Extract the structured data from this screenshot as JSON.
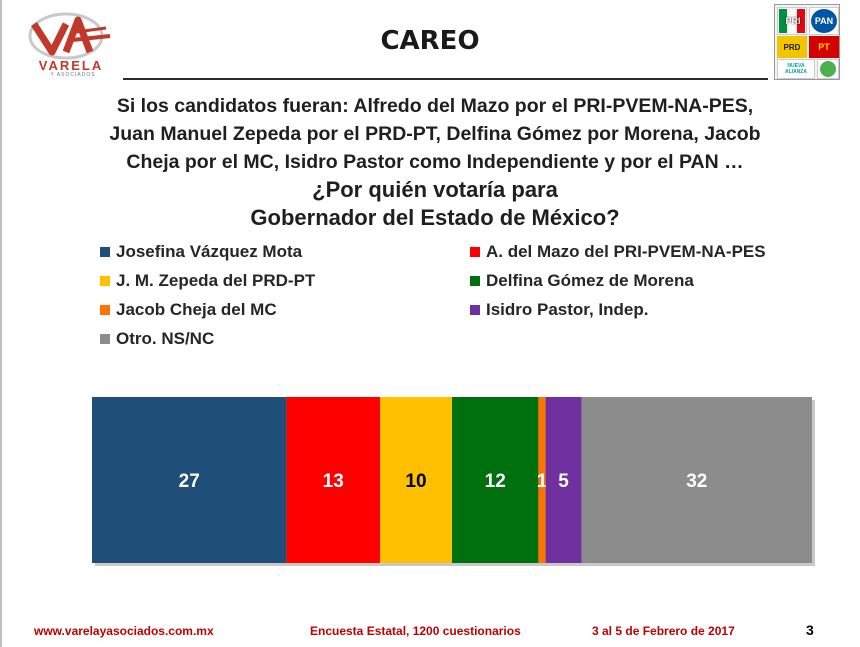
{
  "header": {
    "logo_text": "VARELA",
    "logo_subtext": "Y ASOCIADOS",
    "title": "CAREO",
    "party_logos": [
      {
        "name": "PRI",
        "label": "PRI",
        "color": "#e30613"
      },
      {
        "name": "PAN",
        "label": "PAN",
        "color": "#0055a5"
      },
      {
        "name": "PRD",
        "label": "PRD",
        "color": "#f2c500"
      },
      {
        "name": "PT",
        "label": "PT",
        "color": "#d40000"
      },
      {
        "name": "Nueva Alianza",
        "label": "NUEVA ALIANZA",
        "color": "#00a3a6"
      },
      {
        "name": "PVEM",
        "label": "",
        "color": "#4caf50"
      }
    ]
  },
  "question": {
    "line1": "Si los candidatos fueran: Alfredo del Mazo por el PRI-PVEM-NA-PES,",
    "line2": "Juan Manuel Zepeda por el PRD-PT, Delfina Gómez por Morena, Jacob",
    "line3": "Cheja por el MC, Isidro Pastor como Independiente y por el PAN …",
    "line4": "¿Por quién votaría para",
    "line5": "Gobernador del Estado de México?"
  },
  "chart_data": {
    "type": "bar",
    "stacked": true,
    "orientation": "horizontal-100%",
    "title": "",
    "xlabel": "",
    "ylabel": "",
    "legend_position": "top",
    "grid": false,
    "categories": [
      ""
    ],
    "series": [
      {
        "name": "Josefina Vázquez Mota",
        "values": [
          27
        ],
        "color": "#1f4e79"
      },
      {
        "name": "A. del Mazo del PRI-PVEM-NA-PES",
        "values": [
          13
        ],
        "color": "#ff0000"
      },
      {
        "name": "J. M. Zepeda del PRD-PT",
        "values": [
          10
        ],
        "color": "#ffc000"
      },
      {
        "name": "Delfina Gómez de Morena",
        "values": [
          12
        ],
        "color": "#00700f"
      },
      {
        "name": "Jacob Cheja del MC",
        "values": [
          1
        ],
        "color": "#ff7400"
      },
      {
        "name": "Isidro Pastor, Indep.",
        "values": [
          5
        ],
        "color": "#7030a0"
      },
      {
        "name": "Otro. NS/NC",
        "values": [
          32
        ],
        "color": "#8c8c8c"
      }
    ]
  },
  "footer": {
    "website": "www.varelayasociados.com.mx",
    "survey": "Encuesta Estatal, 1200 cuestionarios",
    "date": "3 al 5 de Febrero de 2017",
    "page": "3"
  }
}
